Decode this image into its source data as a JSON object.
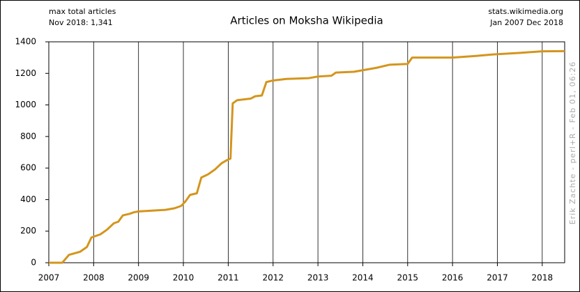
{
  "chart_data": {
    "type": "line",
    "title": "Articles on Moksha Wikipedia",
    "annotations": [
      "max total articles",
      "Nov 2018: 1,341",
      "stats.wikimedia.org",
      "Jan 2007 Dec 2018",
      "Erik Zachte - perl+R - Feb 01, 06:26"
    ],
    "xlim": [
      2007,
      2018.5
    ],
    "xticks": [
      2007,
      2008,
      2009,
      2010,
      2011,
      2012,
      2013,
      2014,
      2015,
      2016,
      2017,
      2018
    ],
    "ylim": [
      0,
      1400
    ],
    "yticks": [
      0,
      200,
      400,
      600,
      800,
      1000,
      1200,
      1400
    ],
    "grid": "x",
    "series": [
      {
        "name": "articles",
        "color": "#d4951c",
        "x": [
          2007.0,
          2007.3,
          2007.45,
          2007.7,
          2007.85,
          2007.95,
          2008.15,
          2008.3,
          2008.45,
          2008.55,
          2008.65,
          2008.8,
          2008.9,
          2009.0,
          2009.3,
          2009.6,
          2009.8,
          2009.95,
          2010.05,
          2010.15,
          2010.3,
          2010.4,
          2010.55,
          2010.7,
          2010.85,
          2010.97,
          2011.05,
          2011.1,
          2011.2,
          2011.5,
          2011.6,
          2011.75,
          2011.85,
          2012.0,
          2012.3,
          2012.8,
          2013.0,
          2013.3,
          2013.4,
          2013.8,
          2014.0,
          2014.3,
          2014.6,
          2015.0,
          2015.1,
          2016.0,
          2016.5,
          2016.9,
          2017.5,
          2018.0,
          2018.5
        ],
        "values": [
          0,
          0,
          50,
          70,
          100,
          160,
          180,
          210,
          250,
          260,
          300,
          310,
          320,
          325,
          330,
          335,
          345,
          360,
          390,
          430,
          440,
          540,
          560,
          590,
          630,
          650,
          660,
          1010,
          1030,
          1040,
          1055,
          1060,
          1145,
          1155,
          1165,
          1170,
          1180,
          1185,
          1205,
          1210,
          1220,
          1235,
          1255,
          1260,
          1300,
          1300,
          1310,
          1320,
          1330,
          1340,
          1341
        ]
      }
    ]
  }
}
